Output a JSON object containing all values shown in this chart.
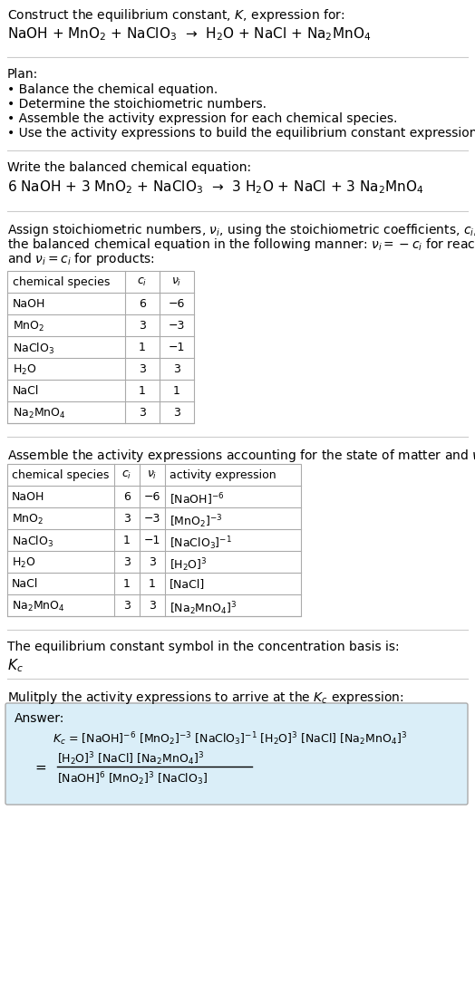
{
  "title_line1": "Construct the equilibrium constant, $K$, expression for:",
  "title_line2": "NaOH + MnO$_2$ + NaClO$_3$  →  H$_2$O + NaCl + Na$_2$MnO$_4$",
  "plan_header": "Plan:",
  "plan_items": [
    "• Balance the chemical equation.",
    "• Determine the stoichiometric numbers.",
    "• Assemble the activity expression for each chemical species.",
    "• Use the activity expressions to build the equilibrium constant expression."
  ],
  "balanced_header": "Write the balanced chemical equation:",
  "balanced_eq": "6 NaOH + 3 MnO$_2$ + NaClO$_3$  →  3 H$_2$O + NaCl + 3 Na$_2$MnO$_4$",
  "stoich_header_lines": [
    "Assign stoichiometric numbers, $\\nu_i$, using the stoichiometric coefficients, $c_i$, from",
    "the balanced chemical equation in the following manner: $\\nu_i = -c_i$ for reactants",
    "and $\\nu_i = c_i$ for products:"
  ],
  "table1_headers": [
    "chemical species",
    "$c_i$",
    "$\\nu_i$"
  ],
  "table1_rows": [
    [
      "NaOH",
      "6",
      "−6"
    ],
    [
      "MnO$_2$",
      "3",
      "−3"
    ],
    [
      "NaClO$_3$",
      "1",
      "−1"
    ],
    [
      "H$_2$O",
      "3",
      "3"
    ],
    [
      "NaCl",
      "1",
      "1"
    ],
    [
      "Na$_2$MnO$_4$",
      "3",
      "3"
    ]
  ],
  "activity_header": "Assemble the activity expressions accounting for the state of matter and $\\nu_i$:",
  "table2_headers": [
    "chemical species",
    "$c_i$",
    "$\\nu_i$",
    "activity expression"
  ],
  "table2_rows": [
    [
      "NaOH",
      "6",
      "−6",
      "[NaOH]$^{-6}$"
    ],
    [
      "MnO$_2$",
      "3",
      "−3",
      "[MnO$_2$]$^{-3}$"
    ],
    [
      "NaClO$_3$",
      "1",
      "−1",
      "[NaClO$_3$]$^{-1}$"
    ],
    [
      "H$_2$O",
      "3",
      "3",
      "[H$_2$O]$^3$"
    ],
    [
      "NaCl",
      "1",
      "1",
      "[NaCl]"
    ],
    [
      "Na$_2$MnO$_4$",
      "3",
      "3",
      "[Na$_2$MnO$_4$]$^3$"
    ]
  ],
  "kc_header": "The equilibrium constant symbol in the concentration basis is:",
  "kc_symbol": "$K_c$",
  "multiply_header": "Mulitply the activity expressions to arrive at the $K_c$ expression:",
  "answer_label": "Answer:",
  "answer_line1": "$K_c$ = [NaOH]$^{-6}$ [MnO$_2$]$^{-3}$ [NaClO$_3$]$^{-1}$ [H$_2$O]$^3$ [NaCl] [Na$_2$MnO$_4$]$^3$",
  "answer_num": "[H$_2$O]$^3$ [NaCl] [Na$_2$MnO$_4$]$^3$",
  "answer_den": "[NaOH]$^6$ [MnO$_2$]$^3$ [NaClO$_3$]",
  "bg_color": "#ffffff",
  "answer_box_color": "#daeef8",
  "line_color": "#cccccc",
  "table_line_color": "#aaaaaa",
  "font_size": 10.0,
  "small_font": 9.0
}
